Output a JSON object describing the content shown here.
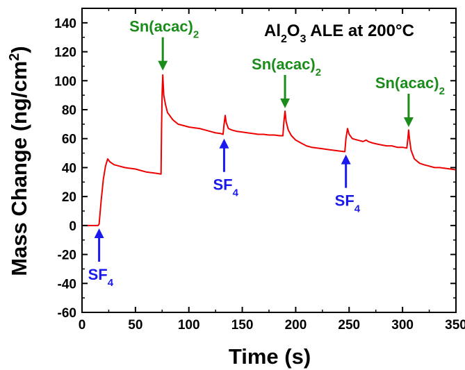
{
  "chart_data": {
    "type": "line",
    "title": {
      "prefix": "Al",
      "sub1": "2",
      "mid": "O",
      "sub2": "3",
      "suffix": " ALE at 200°C"
    },
    "xlabel": "Time (s)",
    "ylabel": {
      "main": "Mass Change (ng/cm",
      "sup": "2",
      "close": ")"
    },
    "xlim": [
      0,
      350
    ],
    "ylim": [
      -60,
      150
    ],
    "xticks": [
      0,
      50,
      100,
      150,
      200,
      250,
      300,
      350
    ],
    "yticks": [
      -60,
      -40,
      -20,
      0,
      20,
      40,
      60,
      80,
      100,
      120,
      140
    ],
    "grid": false,
    "series": [
      {
        "color": "#ee0000",
        "points": [
          [
            0,
            0
          ],
          [
            8,
            0
          ],
          [
            15,
            0
          ],
          [
            16,
            1
          ],
          [
            18,
            18
          ],
          [
            20,
            32
          ],
          [
            22,
            41
          ],
          [
            24,
            46
          ],
          [
            26,
            44
          ],
          [
            30,
            42
          ],
          [
            35,
            41
          ],
          [
            40,
            40
          ],
          [
            45,
            39.5
          ],
          [
            50,
            39
          ],
          [
            55,
            38
          ],
          [
            60,
            37
          ],
          [
            65,
            36.5
          ],
          [
            70,
            36
          ],
          [
            74,
            35.5
          ],
          [
            74.5,
            70
          ],
          [
            75,
            92
          ],
          [
            75.6,
            104
          ],
          [
            76.5,
            90
          ],
          [
            78,
            84
          ],
          [
            80,
            78
          ],
          [
            85,
            73
          ],
          [
            90,
            70
          ],
          [
            95,
            69
          ],
          [
            100,
            68
          ],
          [
            105,
            67.5
          ],
          [
            110,
            67
          ],
          [
            115,
            66
          ],
          [
            120,
            65
          ],
          [
            125,
            64
          ],
          [
            130,
            63.5
          ],
          [
            132,
            63
          ],
          [
            133,
            70
          ],
          [
            134,
            76
          ],
          [
            135,
            71
          ],
          [
            137,
            67
          ],
          [
            140,
            66
          ],
          [
            145,
            65
          ],
          [
            150,
            64.5
          ],
          [
            155,
            64
          ],
          [
            160,
            63.5
          ],
          [
            165,
            63
          ],
          [
            170,
            63
          ],
          [
            175,
            62.5
          ],
          [
            180,
            62.5
          ],
          [
            185,
            62
          ],
          [
            188,
            62
          ],
          [
            189,
            72
          ],
          [
            190,
            79
          ],
          [
            191,
            72
          ],
          [
            193,
            66
          ],
          [
            196,
            62
          ],
          [
            200,
            59
          ],
          [
            205,
            57
          ],
          [
            210,
            55
          ],
          [
            215,
            54
          ],
          [
            220,
            53.5
          ],
          [
            225,
            53
          ],
          [
            230,
            52.5
          ],
          [
            235,
            52
          ],
          [
            240,
            51.5
          ],
          [
            246,
            51
          ],
          [
            247,
            60
          ],
          [
            248.5,
            67
          ],
          [
            250,
            63
          ],
          [
            253,
            60
          ],
          [
            258,
            59
          ],
          [
            263,
            58
          ],
          [
            266,
            59
          ],
          [
            268,
            58
          ],
          [
            272,
            57
          ],
          [
            278,
            56
          ],
          [
            285,
            55
          ],
          [
            290,
            55
          ],
          [
            295,
            54
          ],
          [
            300,
            54
          ],
          [
            304,
            53.5
          ],
          [
            305,
            60
          ],
          [
            305.7,
            66
          ],
          [
            306.5,
            60
          ],
          [
            308,
            52
          ],
          [
            311,
            46
          ],
          [
            316,
            43
          ],
          [
            320,
            42
          ],
          [
            325,
            41
          ],
          [
            330,
            40
          ],
          [
            335,
            40
          ],
          [
            340,
            39.5
          ],
          [
            345,
            39
          ],
          [
            350,
            38.5
          ]
        ]
      }
    ],
    "annotations": [
      {
        "x": 16,
        "y": -2,
        "label_main": "SF",
        "label_sub": "4",
        "arrow": "up",
        "color": "#1a1aee"
      },
      {
        "x": 75.6,
        "y": 107,
        "label_main": "Sn(acac)",
        "label_sub": "2",
        "arrow": "down",
        "color": "#1a8c1a"
      },
      {
        "x": 133,
        "y": 60,
        "label_main": "SF",
        "label_sub": "4",
        "arrow": "up",
        "color": "#1a1aee"
      },
      {
        "x": 190,
        "y": 81,
        "label_main": "Sn(acac)",
        "label_sub": "2",
        "arrow": "down",
        "color": "#1a8c1a"
      },
      {
        "x": 247,
        "y": 49,
        "label_main": "SF",
        "label_sub": "4",
        "arrow": "up",
        "color": "#1a1aee"
      },
      {
        "x": 305.7,
        "y": 68,
        "label_main": "Sn(acac)",
        "label_sub": "2",
        "arrow": "down",
        "color": "#1a8c1a"
      }
    ]
  }
}
